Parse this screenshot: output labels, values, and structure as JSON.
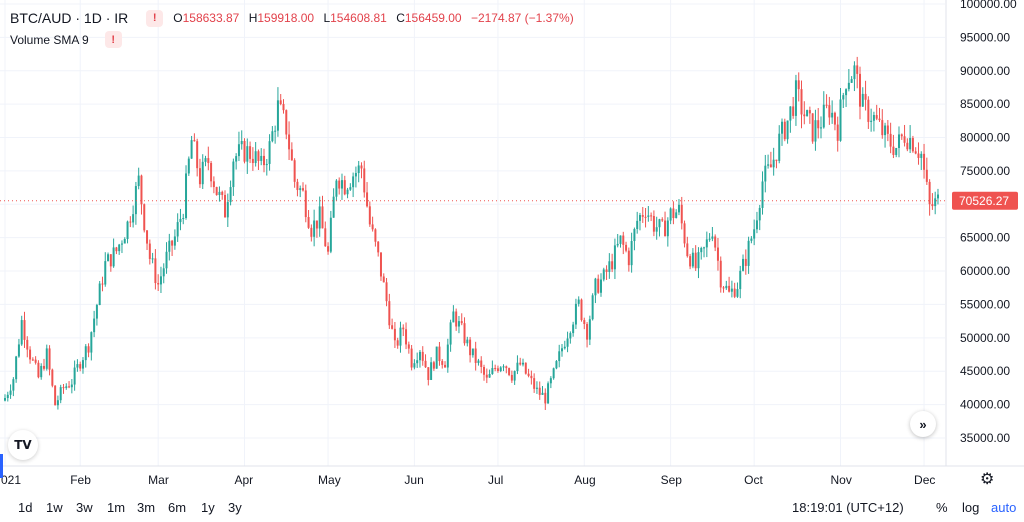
{
  "legend": {
    "symbol": "BTC/AUD",
    "interval": "1D",
    "exchange": "IR",
    "warn_icon": "!",
    "open_key": "O",
    "open": "158633.87",
    "high_key": "H",
    "high": "159918.00",
    "low_key": "L",
    "low": "154608.81",
    "close_key": "C",
    "close": "156459.00",
    "change": "−2174.87 (−1.37%)",
    "indicator": "Volume",
    "indicator_sma": "SMA 9"
  },
  "colors": {
    "up": "#26a69a",
    "down": "#ef5350",
    "accent": "#2962ff",
    "grid": "#f0f3fa",
    "warn": "#e2424b"
  },
  "price_tag": "70526.27",
  "ranges": [
    "1d",
    "1w",
    "3w",
    "1m",
    "3m",
    "6m",
    "1y",
    "3y"
  ],
  "time_readout": "18:19:01 (UTC+12)",
  "scale_buttons": {
    "percent": "%",
    "log": "log",
    "auto": "auto"
  },
  "icons": {
    "scroll_right": "»",
    "logo": "TV",
    "settings": "⚙"
  },
  "chart_data": {
    "type": "candlestick",
    "y_axis_labels": [
      "100000.00",
      "95000.00",
      "90000.00",
      "85000.00",
      "80000.00",
      "75000.00",
      "70000.00",
      "65000.00",
      "60000.00",
      "55000.00",
      "50000.00",
      "45000.00",
      "40000.00",
      "35000.00"
    ],
    "ylim": [
      30800,
      100600
    ],
    "x_axis_labels": [
      "021",
      "Feb",
      "Mar",
      "Apr",
      "May",
      "Jun",
      "Jul",
      "Aug",
      "Sep",
      "Oct",
      "Nov",
      "Dec"
    ],
    "x_label_days": [
      0,
      27,
      55,
      86,
      116,
      147,
      177,
      208,
      239,
      269,
      300,
      330
    ],
    "last_price": 70526.27,
    "close_points": [
      [
        0,
        41000
      ],
      [
        3,
        44000
      ],
      [
        6,
        52500
      ],
      [
        9,
        47500
      ],
      [
        12,
        44000
      ],
      [
        15,
        47500
      ],
      [
        18,
        40000
      ],
      [
        21,
        42500
      ],
      [
        24,
        43500
      ],
      [
        27,
        46500
      ],
      [
        30,
        49000
      ],
      [
        33,
        55000
      ],
      [
        36,
        61000
      ],
      [
        40,
        63000
      ],
      [
        44,
        67000
      ],
      [
        48,
        73500
      ],
      [
        50,
        67500
      ],
      [
        52,
        62000
      ],
      [
        55,
        58000
      ],
      [
        58,
        62000
      ],
      [
        61,
        65000
      ],
      [
        64,
        69500
      ],
      [
        67,
        79500
      ],
      [
        70,
        74000
      ],
      [
        73,
        76500
      ],
      [
        76,
        72000
      ],
      [
        79,
        69000
      ],
      [
        82,
        77000
      ],
      [
        86,
        78000
      ],
      [
        89,
        77500
      ],
      [
        92,
        75500
      ],
      [
        95,
        78500
      ],
      [
        98,
        84500
      ],
      [
        101,
        81500
      ],
      [
        104,
        73500
      ],
      [
        107,
        71500
      ],
      [
        110,
        66500
      ],
      [
        113,
        68000
      ],
      [
        116,
        62500
      ],
      [
        119,
        74500
      ],
      [
        122,
        73000
      ],
      [
        125,
        74500
      ],
      [
        128,
        75500
      ],
      [
        131,
        67000
      ],
      [
        134,
        62000
      ],
      [
        137,
        55500
      ],
      [
        140,
        48500
      ],
      [
        143,
        51500
      ],
      [
        146,
        46500
      ],
      [
        149,
        48500
      ],
      [
        152,
        44500
      ],
      [
        155,
        47500
      ],
      [
        158,
        46500
      ],
      [
        161,
        53500
      ],
      [
        164,
        51000
      ],
      [
        167,
        48000
      ],
      [
        170,
        46000
      ],
      [
        173,
        43500
      ],
      [
        176,
        45500
      ],
      [
        179,
        46500
      ],
      [
        182,
        44500
      ],
      [
        185,
        46000
      ],
      [
        188,
        44000
      ],
      [
        191,
        42000
      ],
      [
        194,
        41000
      ],
      [
        197,
        44500
      ],
      [
        200,
        48500
      ],
      [
        203,
        52000
      ],
      [
        206,
        55000
      ],
      [
        209,
        51000
      ],
      [
        212,
        57500
      ],
      [
        215,
        59000
      ],
      [
        218,
        61500
      ],
      [
        221,
        64500
      ],
      [
        224,
        62000
      ],
      [
        227,
        67500
      ],
      [
        230,
        69500
      ],
      [
        233,
        67000
      ],
      [
        236,
        66000
      ],
      [
        239,
        68500
      ],
      [
        242,
        69000
      ],
      [
        245,
        63000
      ],
      [
        248,
        60500
      ],
      [
        251,
        63000
      ],
      [
        254,
        66500
      ],
      [
        257,
        59000
      ],
      [
        260,
        56500
      ],
      [
        263,
        58000
      ],
      [
        266,
        62000
      ],
      [
        269,
        66500
      ],
      [
        272,
        73500
      ],
      [
        275,
        75500
      ],
      [
        278,
        79500
      ],
      [
        281,
        82500
      ],
      [
        284,
        86500
      ],
      [
        287,
        83500
      ],
      [
        290,
        81000
      ],
      [
        293,
        82500
      ],
      [
        296,
        84500
      ],
      [
        299,
        81500
      ],
      [
        302,
        89000
      ],
      [
        305,
        90000
      ],
      [
        308,
        84500
      ],
      [
        311,
        83500
      ],
      [
        314,
        81500
      ],
      [
        317,
        79500
      ],
      [
        320,
        78500
      ],
      [
        323,
        80500
      ],
      [
        326,
        79500
      ],
      [
        329,
        77500
      ],
      [
        332,
        69500
      ],
      [
        335,
        70526
      ]
    ],
    "first_day": 0,
    "last_day": 335
  }
}
